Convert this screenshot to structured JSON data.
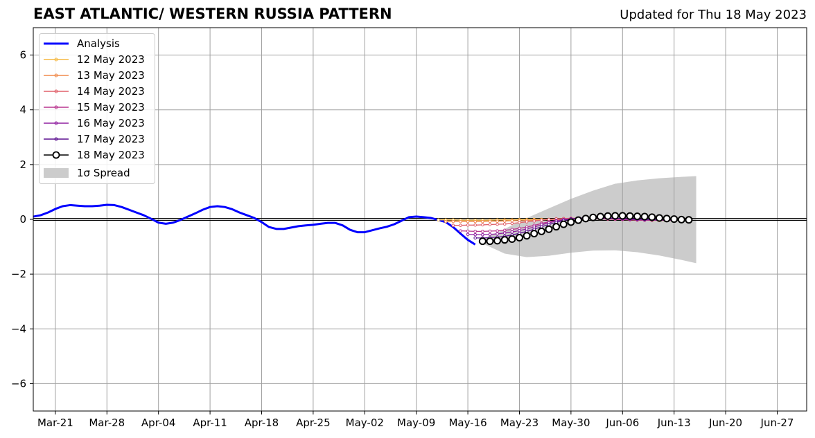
{
  "header": {
    "title": "EAST ATLANTIC/ WESTERN RUSSIA PATTERN",
    "updated": "Updated for Thu 18 May 2023"
  },
  "colors": {
    "analysis": "#0000ff",
    "spread": "#cccccc",
    "grid": "#a0a0a0"
  },
  "chart_data": {
    "type": "line",
    "title": "EAST ATLANTIC/ WESTERN RUSSIA PATTERN",
    "subtitle": "Updated for Thu 18 May 2023",
    "xlabel": "",
    "ylabel": "",
    "x_axis": {
      "type": "date",
      "range": [
        "2023-03-18",
        "2023-07-01"
      ],
      "ticks": [
        "2023-03-21",
        "2023-03-28",
        "2023-04-04",
        "2023-04-11",
        "2023-04-18",
        "2023-04-25",
        "2023-05-02",
        "2023-05-09",
        "2023-05-16",
        "2023-05-23",
        "2023-05-30",
        "2023-06-06",
        "2023-06-13",
        "2023-06-20",
        "2023-06-27"
      ],
      "tick_labels": [
        "Mar-21",
        "Mar-28",
        "Apr-04",
        "Apr-11",
        "Apr-18",
        "Apr-25",
        "May-02",
        "May-09",
        "May-16",
        "May-23",
        "May-30",
        "Jun-06",
        "Jun-13",
        "Jun-20",
        "Jun-27"
      ]
    },
    "ylim": [
      -7,
      7
    ],
    "yticks": [
      -6,
      -4,
      -2,
      0,
      2,
      4,
      6
    ],
    "ytick_labels": [
      "−6",
      "−4",
      "−2",
      "0",
      "2",
      "4",
      "6"
    ],
    "grid": true,
    "zero_line": true,
    "legend": {
      "position": "top-left",
      "entries": [
        "Analysis",
        "12 May 2023",
        "13 May 2023",
        "14 May 2023",
        "15 May 2023",
        "16 May 2023",
        "17 May 2023",
        "18 May 2023",
        "1σ Spread"
      ]
    },
    "analysis": {
      "name": "Analysis",
      "color": "#0000ff",
      "x": [
        "2023-03-18",
        "2023-03-19",
        "2023-03-20",
        "2023-03-21",
        "2023-03-22",
        "2023-03-23",
        "2023-03-24",
        "2023-03-25",
        "2023-03-26",
        "2023-03-27",
        "2023-03-28",
        "2023-03-29",
        "2023-03-30",
        "2023-03-31",
        "2023-04-01",
        "2023-04-02",
        "2023-04-03",
        "2023-04-04",
        "2023-04-05",
        "2023-04-06",
        "2023-04-07",
        "2023-04-08",
        "2023-04-09",
        "2023-04-10",
        "2023-04-11",
        "2023-04-12",
        "2023-04-13",
        "2023-04-14",
        "2023-04-15",
        "2023-04-16",
        "2023-04-17",
        "2023-04-18",
        "2023-04-19",
        "2023-04-20",
        "2023-04-21",
        "2023-04-22",
        "2023-04-23",
        "2023-04-24",
        "2023-04-25",
        "2023-04-26",
        "2023-04-27",
        "2023-04-28",
        "2023-04-29",
        "2023-04-30",
        "2023-05-01",
        "2023-05-02",
        "2023-05-03",
        "2023-05-04",
        "2023-05-05",
        "2023-05-06",
        "2023-05-07",
        "2023-05-08",
        "2023-05-09",
        "2023-05-10",
        "2023-05-11",
        "2023-05-12",
        "2023-05-13",
        "2023-05-14",
        "2023-05-15",
        "2023-05-16",
        "2023-05-17"
      ],
      "y": [
        0.1,
        0.15,
        0.25,
        0.38,
        0.48,
        0.52,
        0.5,
        0.48,
        0.48,
        0.5,
        0.53,
        0.52,
        0.45,
        0.35,
        0.25,
        0.15,
        0.02,
        -0.12,
        -0.16,
        -0.12,
        -0.02,
        0.1,
        0.22,
        0.35,
        0.45,
        0.48,
        0.45,
        0.37,
        0.25,
        0.15,
        0.05,
        -0.1,
        -0.28,
        -0.35,
        -0.35,
        -0.3,
        -0.25,
        -0.22,
        -0.2,
        -0.16,
        -0.13,
        -0.13,
        -0.22,
        -0.38,
        -0.47,
        -0.47,
        -0.4,
        -0.33,
        -0.27,
        -0.18,
        -0.05,
        0.08,
        0.1,
        0.08,
        0.05,
        -0.02,
        -0.1,
        -0.28,
        -0.52,
        -0.75,
        -0.92
      ]
    },
    "forecasts": [
      {
        "name": "12 May 2023",
        "color": "#f5b942",
        "start": "2023-05-12",
        "y": [
          -0.02,
          -0.02,
          -0.02,
          -0.03,
          -0.03,
          -0.03,
          -0.03,
          -0.03,
          -0.02,
          -0.02,
          -0.02,
          -0.01,
          -0.01,
          0.0,
          0.0,
          0.0,
          0.01,
          0.02,
          0.02,
          0.02,
          0.03,
          0.03,
          0.02,
          0.02,
          0.01,
          0.0,
          0.0,
          -0.02,
          -0.03,
          -0.04,
          -0.04,
          -0.04,
          -0.03
        ]
      },
      {
        "name": "13 May 2023",
        "color": "#f08a4b",
        "start": "2023-05-13",
        "y": [
          -0.08,
          -0.08,
          -0.08,
          -0.08,
          -0.08,
          -0.08,
          -0.07,
          -0.07,
          -0.06,
          -0.05,
          -0.05,
          -0.04,
          -0.03,
          -0.02,
          -0.01,
          0.0,
          0.01,
          0.02,
          0.03,
          0.04,
          0.04,
          0.04,
          0.03,
          0.02,
          0.01,
          0.0,
          -0.01,
          -0.02,
          -0.03,
          -0.04,
          -0.04,
          -0.04
        ]
      },
      {
        "name": "14 May 2023",
        "color": "#e0606a",
        "start": "2023-05-14",
        "y": [
          -0.22,
          -0.22,
          -0.21,
          -0.21,
          -0.2,
          -0.19,
          -0.18,
          -0.17,
          -0.15,
          -0.12,
          -0.09,
          -0.06,
          -0.03,
          0.0,
          0.02,
          0.03,
          0.04,
          0.04,
          0.04,
          0.03,
          0.02,
          0.01,
          0.0,
          -0.01,
          -0.02,
          -0.03,
          -0.03,
          -0.03,
          -0.03,
          -0.03,
          -0.03
        ]
      },
      {
        "name": "15 May 2023",
        "color": "#b9348e",
        "start": "2023-05-15",
        "y": [
          -0.42,
          -0.43,
          -0.44,
          -0.44,
          -0.43,
          -0.42,
          -0.4,
          -0.37,
          -0.33,
          -0.28,
          -0.22,
          -0.15,
          -0.09,
          -0.04,
          0.0,
          0.02,
          0.04,
          0.04,
          0.04,
          0.03,
          0.02,
          0.01,
          0.0,
          -0.01,
          -0.02,
          -0.03,
          -0.03,
          -0.03,
          -0.03,
          -0.03
        ]
      },
      {
        "name": "16 May 2023",
        "color": "#8f1fa0",
        "start": "2023-05-16",
        "y": [
          -0.55,
          -0.56,
          -0.56,
          -0.55,
          -0.53,
          -0.5,
          -0.46,
          -0.41,
          -0.35,
          -0.28,
          -0.2,
          -0.13,
          -0.06,
          -0.01,
          0.02,
          0.04,
          0.05,
          0.05,
          0.04,
          0.03,
          0.02,
          0.01,
          0.0,
          -0.01,
          -0.02,
          -0.02,
          -0.03,
          -0.03,
          -0.03
        ]
      },
      {
        "name": "17 May 2023",
        "color": "#5a0f8f",
        "start": "2023-05-17",
        "y": [
          -0.68,
          -0.68,
          -0.67,
          -0.65,
          -0.62,
          -0.57,
          -0.51,
          -0.44,
          -0.36,
          -0.27,
          -0.19,
          -0.11,
          -0.04,
          0.01,
          0.04,
          0.06,
          0.06,
          0.06,
          0.05,
          0.04,
          0.03,
          0.02,
          0.01,
          0.0,
          -0.01,
          -0.02,
          -0.02,
          -0.02
        ]
      },
      {
        "name": "18 May 2023",
        "color": "#000000",
        "start": "2023-05-18",
        "y": [
          -0.8,
          -0.8,
          -0.78,
          -0.75,
          -0.72,
          -0.67,
          -0.6,
          -0.52,
          -0.44,
          -0.36,
          -0.27,
          -0.18,
          -0.1,
          -0.03,
          0.03,
          0.07,
          0.1,
          0.12,
          0.13,
          0.13,
          0.12,
          0.11,
          0.1,
          0.08,
          0.05,
          0.03,
          0.01,
          -0.01,
          -0.02
        ]
      }
    ],
    "spread": {
      "name": "1σ Spread",
      "color": "#cccccc",
      "x": [
        "2023-05-18",
        "2023-05-21",
        "2023-05-24",
        "2023-05-27",
        "2023-05-30",
        "2023-06-02",
        "2023-06-05",
        "2023-06-08",
        "2023-06-11",
        "2023-06-14",
        "2023-06-16"
      ],
      "upper": [
        -0.72,
        -0.35,
        0.05,
        0.4,
        0.75,
        1.05,
        1.3,
        1.42,
        1.5,
        1.55,
        1.58
      ],
      "lower": [
        -0.88,
        -1.25,
        -1.38,
        -1.33,
        -1.22,
        -1.14,
        -1.13,
        -1.2,
        -1.32,
        -1.48,
        -1.6
      ]
    }
  }
}
